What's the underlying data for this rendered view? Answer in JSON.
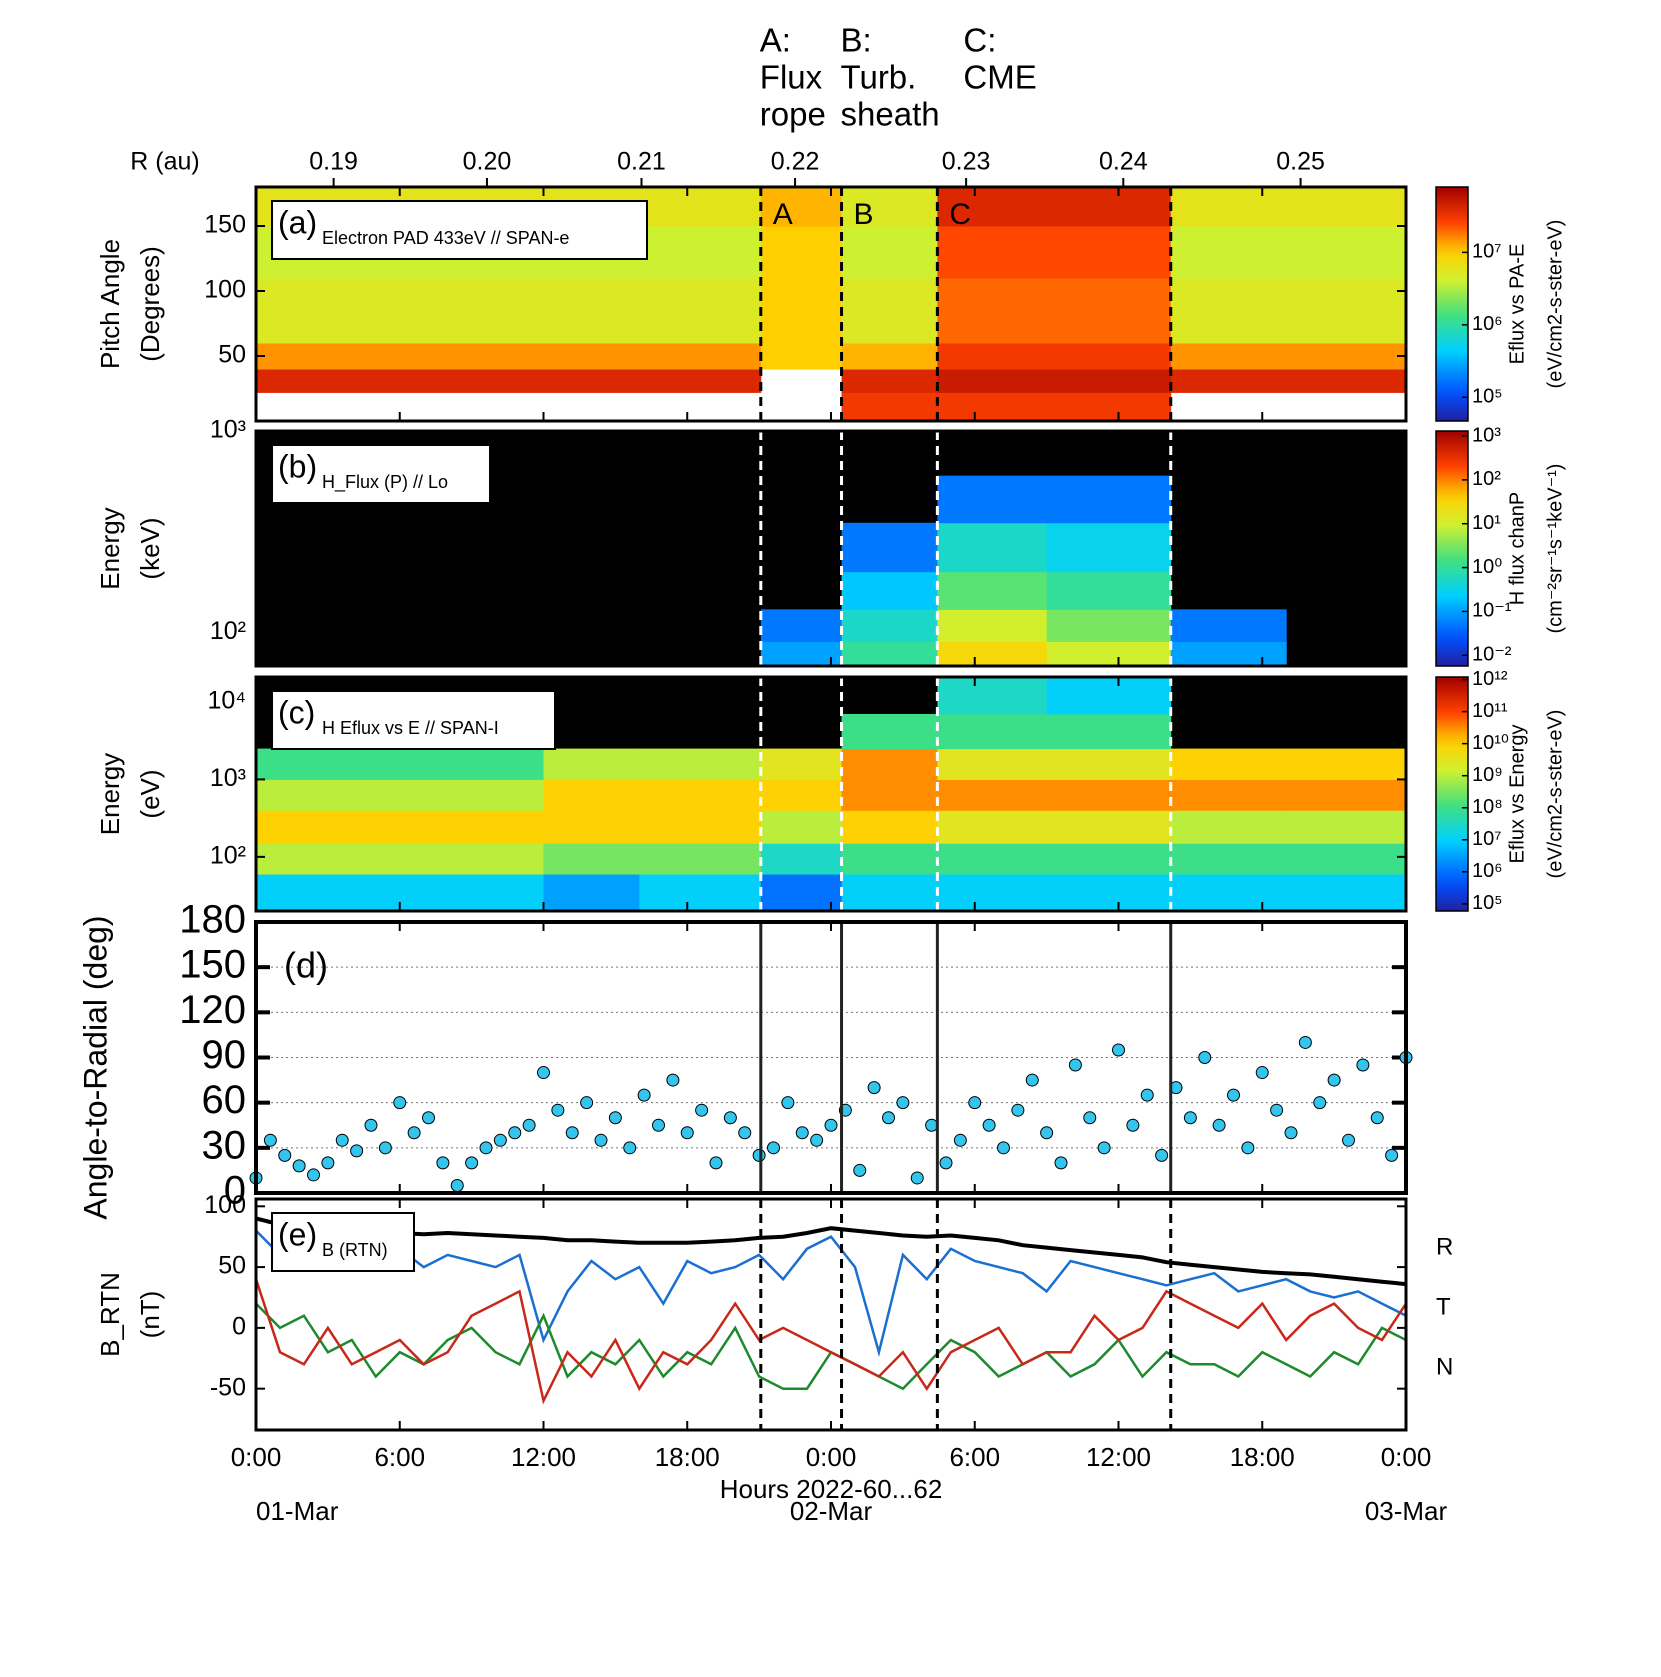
{
  "chart_data": [
    {
      "type": "heatmap",
      "label": "(a)",
      "title": "Electron PAD 433eV // SPAN-e",
      "ylabel": [
        "Pitch Angle",
        "(Degrees)"
      ],
      "ylim": [
        0,
        180
      ],
      "yticks": [
        50,
        100,
        150
      ],
      "log": false,
      "background": "#ffffff",
      "r_axis": {
        "label": "R (au)",
        "ticks": [
          "0.19",
          "0.20",
          "0.21",
          "0.22",
          "0.23",
          "0.24",
          "0.25"
        ],
        "hours": [
          3.24,
          9.64,
          16.09,
          22.5,
          29.64,
          36.2,
          43.6
        ]
      },
      "events": {
        "hours": [
          21.07,
          24.44,
          28.44,
          38.18
        ],
        "letters": [
          "A",
          "B",
          "C"
        ],
        "notes": [
          [
            "A:",
            "Flux",
            "rope"
          ],
          [
            "B:",
            "Turb.",
            "sheath"
          ],
          [
            "C:",
            "CME"
          ]
        ],
        "color": "#1a1aff"
      },
      "event_line_style": "dashed",
      "colorbar": {
        "clim": [
          47000,
          80000000
        ],
        "ticks": [
          {
            "value": 100000,
            "label": "10⁵"
          },
          {
            "value": 1000000,
            "label": "10⁶"
          },
          {
            "value": 10000000,
            "label": "10⁷"
          }
        ],
        "label": [
          "Eflux vs PA-E",
          "(eV/cm2-s-ster-eV)"
        ]
      },
      "x_edges": [
        0,
        4,
        8,
        12,
        16,
        21.07,
        24.44,
        28.44,
        33,
        38.18,
        43,
        48
      ],
      "y_edges": [
        0,
        22,
        40,
        60,
        110,
        150,
        180
      ],
      "z": [
        [
          null,
          null,
          null,
          null,
          null,
          null,
          30000000,
          30000000,
          30000000,
          null,
          null
        ],
        [
          40000000,
          40000000,
          40000000,
          40000000,
          40000000,
          null,
          40000000,
          50000000,
          50000000,
          40000000,
          40000000
        ],
        [
          15000000,
          15000000,
          15000000,
          15000000,
          15000000,
          10000000,
          12000000,
          30000000,
          30000000,
          15000000,
          15000000
        ],
        [
          5000000,
          5000000,
          5000000,
          5000000,
          5000000,
          10000000,
          5000000,
          20000000,
          20000000,
          5000000,
          5000000
        ],
        [
          4000000,
          4000000,
          4000000,
          4000000,
          4000000,
          10000000,
          4000000,
          25000000,
          25000000,
          4000000,
          4000000
        ],
        [
          6000000,
          6000000,
          6000000,
          6000000,
          6000000,
          12000000,
          5000000,
          40000000,
          40000000,
          6000000,
          6000000
        ]
      ]
    },
    {
      "type": "heatmap",
      "label": "(b)",
      "title": "H_Flux (P) // Lo",
      "ylabel": [
        "Energy",
        "(keV)"
      ],
      "ylim": [
        68,
        1000
      ],
      "yticks": [
        {
          "value": 100,
          "label": "10²"
        },
        {
          "value": 1000,
          "label": "10³"
        }
      ],
      "log": true,
      "background": "#000000",
      "event_line_style": "dashed",
      "colorbar": {
        "clim": [
          0.0057,
          1300
        ],
        "ticks": [
          {
            "value": 0.01,
            "label": "10⁻²"
          },
          {
            "value": 0.1,
            "label": "10⁻¹"
          },
          {
            "value": 1,
            "label": "10⁰"
          },
          {
            "value": 10,
            "label": "10¹"
          },
          {
            "value": 100,
            "label": "10²"
          },
          {
            "value": 1000,
            "label": "10³"
          }
        ],
        "label": [
          "H flux chanP",
          "(cm⁻²sr⁻¹s⁻¹keV⁻¹)"
        ]
      },
      "x_edges": [
        0,
        4,
        8,
        12,
        16,
        21.07,
        24.44,
        28.44,
        33,
        38.18,
        43,
        48
      ],
      "y_edges": [
        68,
        90,
        130,
        200,
        350,
        600,
        1000
      ],
      "z": [
        [
          null,
          null,
          null,
          null,
          null,
          0.1,
          1,
          30,
          10,
          0.1,
          null
        ],
        [
          null,
          null,
          null,
          null,
          null,
          0.05,
          0.5,
          10,
          3,
          0.05,
          null
        ],
        [
          null,
          null,
          null,
          null,
          null,
          null,
          0.2,
          2,
          1,
          null,
          null
        ],
        [
          null,
          null,
          null,
          null,
          null,
          null,
          0.05,
          0.5,
          0.3,
          null,
          null
        ],
        [
          null,
          null,
          null,
          null,
          null,
          null,
          null,
          0.05,
          0.05,
          null,
          null
        ],
        [
          null,
          null,
          null,
          null,
          null,
          null,
          null,
          null,
          null,
          null,
          null
        ]
      ]
    },
    {
      "type": "heatmap",
      "label": "(c)",
      "title": "H Eflux vs E // SPAN-I",
      "ylabel": [
        "Energy",
        "(eV)"
      ],
      "ylim": [
        20,
        21000
      ],
      "yticks": [
        {
          "value": 100,
          "label": "10²"
        },
        {
          "value": 1000,
          "label": "10³"
        },
        {
          "value": 10000,
          "label": "10⁴"
        }
      ],
      "log": true,
      "background": "#000000",
      "event_line_style": "dashed",
      "colorbar": {
        "clim": [
          60000,
          1200000000000
        ],
        "ticks": [
          {
            "value": 100000,
            "label": "10⁵"
          },
          {
            "value": 1000000,
            "label": "10⁶"
          },
          {
            "value": 10000000,
            "label": "10⁷"
          },
          {
            "value": 100000000,
            "label": "10⁸"
          },
          {
            "value": 1000000000,
            "label": "10⁹"
          },
          {
            "value": 10000000000,
            "label": "10¹⁰"
          },
          {
            "value": 100000000000,
            "label": "10¹¹"
          },
          {
            "value": 1000000000000,
            "label": "10¹²"
          }
        ],
        "label": [
          "Eflux vs Energy",
          "(eV/cm2-s-ster-eV)"
        ]
      },
      "x_edges": [
        0,
        4,
        8,
        12,
        16,
        21.07,
        24.44,
        28.44,
        33,
        38.18,
        43,
        48
      ],
      "y_edges": [
        20,
        60,
        150,
        400,
        1000,
        2500,
        7000,
        21000
      ],
      "z": [
        [
          10000000,
          10000000,
          10000000,
          3000000,
          10000000,
          1000000,
          10000000,
          10000000,
          10000000,
          10000000,
          10000000
        ],
        [
          1000000000,
          1000000000,
          1000000000,
          300000000,
          300000000,
          30000000,
          100000000,
          100000000,
          100000000,
          100000000,
          100000000
        ],
        [
          10000000000,
          10000000000,
          10000000000,
          10000000000,
          10000000000,
          1000000000,
          10000000000,
          3000000000,
          3000000000,
          1000000000,
          1000000000
        ],
        [
          1000000000,
          1000000000,
          1000000000,
          10000000000,
          10000000000,
          10000000000,
          30000000000,
          30000000000,
          30000000000,
          30000000000,
          30000000000
        ],
        [
          100000000,
          100000000,
          100000000,
          1000000000,
          1000000000,
          3000000000,
          30000000000,
          3000000000,
          3000000000,
          10000000000,
          10000000000
        ],
        [
          null,
          null,
          null,
          null,
          null,
          null,
          100000000,
          100000000,
          100000000,
          null,
          null
        ],
        [
          null,
          null,
          null,
          null,
          null,
          null,
          null,
          30000000,
          10000000,
          null,
          null
        ]
      ]
    },
    {
      "type": "scatter",
      "label": "(d)",
      "ylabel": "Angle-to-Radial (deg)",
      "ylim": [
        0,
        180
      ],
      "yticks": [
        0,
        30,
        60,
        90,
        120,
        150,
        180
      ],
      "grid": true,
      "color": "#33c5ee",
      "event_line_style": "solid",
      "x": [
        0,
        0.6,
        1.2,
        1.8,
        2.4,
        3.0,
        3.6,
        4.2,
        4.8,
        5.4,
        6.0,
        6.6,
        7.2,
        7.8,
        8.4,
        9.0,
        9.6,
        10.2,
        10.8,
        11.4,
        12.0,
        12.6,
        13.2,
        13.8,
        14.4,
        15.0,
        15.6,
        16.2,
        16.8,
        17.4,
        18.0,
        18.6,
        19.2,
        19.8,
        20.4,
        21.0,
        21.6,
        22.2,
        22.8,
        23.4,
        24.0,
        24.6,
        25.2,
        25.8,
        26.4,
        27.0,
        27.6,
        28.2,
        28.8,
        29.4,
        30.0,
        30.6,
        31.2,
        31.8,
        32.4,
        33.0,
        33.6,
        34.2,
        34.8,
        35.4,
        36.0,
        36.6,
        37.2,
        37.8,
        38.4,
        39.0,
        39.6,
        40.2,
        40.8,
        41.4,
        42.0,
        42.6,
        43.2,
        43.8,
        44.4,
        45.0,
        45.6,
        46.2,
        46.8,
        47.4,
        48.0
      ],
      "values": [
        10,
        35,
        25,
        18,
        12,
        20,
        35,
        28,
        45,
        30,
        60,
        40,
        50,
        20,
        5,
        20,
        30,
        35,
        40,
        45,
        80,
        55,
        40,
        60,
        35,
        50,
        30,
        65,
        45,
        75,
        40,
        55,
        20,
        50,
        40,
        25,
        30,
        60,
        40,
        35,
        45,
        55,
        15,
        70,
        50,
        60,
        10,
        45,
        20,
        35,
        60,
        45,
        30,
        55,
        75,
        40,
        20,
        85,
        50,
        30,
        95,
        45,
        65,
        25,
        70,
        50,
        90,
        45,
        65,
        30,
        80,
        55,
        40,
        100,
        60,
        75,
        35,
        85,
        50,
        25,
        90
      ]
    },
    {
      "type": "line",
      "label": "(e)",
      "title": "B (RTN)",
      "ylabel": [
        "B_RTN",
        "(nT)"
      ],
      "ylim": [
        -84,
        106
      ],
      "yticks": [
        -50,
        0,
        50,
        100
      ],
      "event_line_style": "dashed",
      "xlim": [
        0,
        48
      ],
      "xticks": [
        {
          "value": 0,
          "label": "0:00"
        },
        {
          "value": 6,
          "label": "6:00"
        },
        {
          "value": 12,
          "label": "12:00"
        },
        {
          "value": 18,
          "label": "18:00"
        },
        {
          "value": 24,
          "label": "0:00"
        },
        {
          "value": 30,
          "label": "6:00"
        },
        {
          "value": 36,
          "label": "12:00"
        },
        {
          "value": 42,
          "label": "18:00"
        },
        {
          "value": 48,
          "label": "0:00"
        }
      ],
      "xlabel": "Hours 2022-60...62",
      "dates": [
        {
          "value": 0,
          "label": "01-Mar"
        },
        {
          "value": 24,
          "label": "02-Mar"
        },
        {
          "value": 48,
          "label": "03-Mar"
        }
      ],
      "x": [
        0,
        1,
        2,
        3,
        4,
        5,
        6,
        7,
        8,
        9,
        10,
        11,
        12,
        13,
        14,
        15,
        16,
        17,
        18,
        19,
        20,
        21,
        22,
        23,
        24,
        25,
        26,
        27,
        28,
        29,
        30,
        31,
        32,
        33,
        34,
        35,
        36,
        37,
        38,
        39,
        40,
        41,
        42,
        43,
        44,
        45,
        46,
        47,
        48
      ],
      "series": [
        {
          "color": "#000000",
          "values": [
            90,
            85,
            82,
            80,
            80,
            79,
            78,
            77,
            78,
            77,
            76,
            75,
            74,
            72,
            72,
            71,
            70,
            70,
            70,
            71,
            72,
            74,
            75,
            78,
            82,
            80,
            78,
            76,
            75,
            76,
            74,
            72,
            68,
            66,
            64,
            62,
            60,
            58,
            54,
            52,
            50,
            48,
            46,
            45,
            44,
            42,
            40,
            38,
            36
          ]
        },
        {
          "name": "R",
          "color": "#1a6fd0",
          "values": [
            80,
            60,
            65,
            55,
            70,
            60,
            65,
            50,
            60,
            55,
            50,
            60,
            -10,
            30,
            55,
            40,
            50,
            20,
            55,
            45,
            50,
            60,
            40,
            65,
            75,
            50,
            -20,
            60,
            40,
            65,
            55,
            50,
            45,
            30,
            55,
            50,
            45,
            40,
            35,
            40,
            45,
            30,
            35,
            40,
            30,
            25,
            30,
            20,
            10
          ]
        },
        {
          "name": "T",
          "color": "#1e8a2e",
          "values": [
            20,
            0,
            10,
            -20,
            -10,
            -40,
            -20,
            -30,
            -10,
            0,
            -20,
            -30,
            10,
            -40,
            -20,
            -30,
            -10,
            -40,
            -20,
            -30,
            0,
            -40,
            -50,
            -50,
            -20,
            -30,
            -40,
            -50,
            -30,
            -10,
            -20,
            -40,
            -30,
            -20,
            -40,
            -30,
            -10,
            -40,
            -20,
            -30,
            -30,
            -40,
            -20,
            -30,
            -40,
            -20,
            -30,
            0,
            -10
          ]
        },
        {
          "name": "N",
          "color": "#c8281a",
          "values": [
            40,
            -20,
            -30,
            0,
            -30,
            -20,
            -10,
            -30,
            -20,
            10,
            20,
            30,
            -60,
            -20,
            -40,
            -10,
            -50,
            -20,
            -30,
            -10,
            20,
            -10,
            0,
            -10,
            -20,
            -30,
            -40,
            -20,
            -50,
            -20,
            -10,
            0,
            -30,
            -20,
            -20,
            10,
            -10,
            0,
            30,
            20,
            10,
            0,
            20,
            -10,
            10,
            20,
            0,
            -10,
            20
          ]
        }
      ]
    }
  ]
}
